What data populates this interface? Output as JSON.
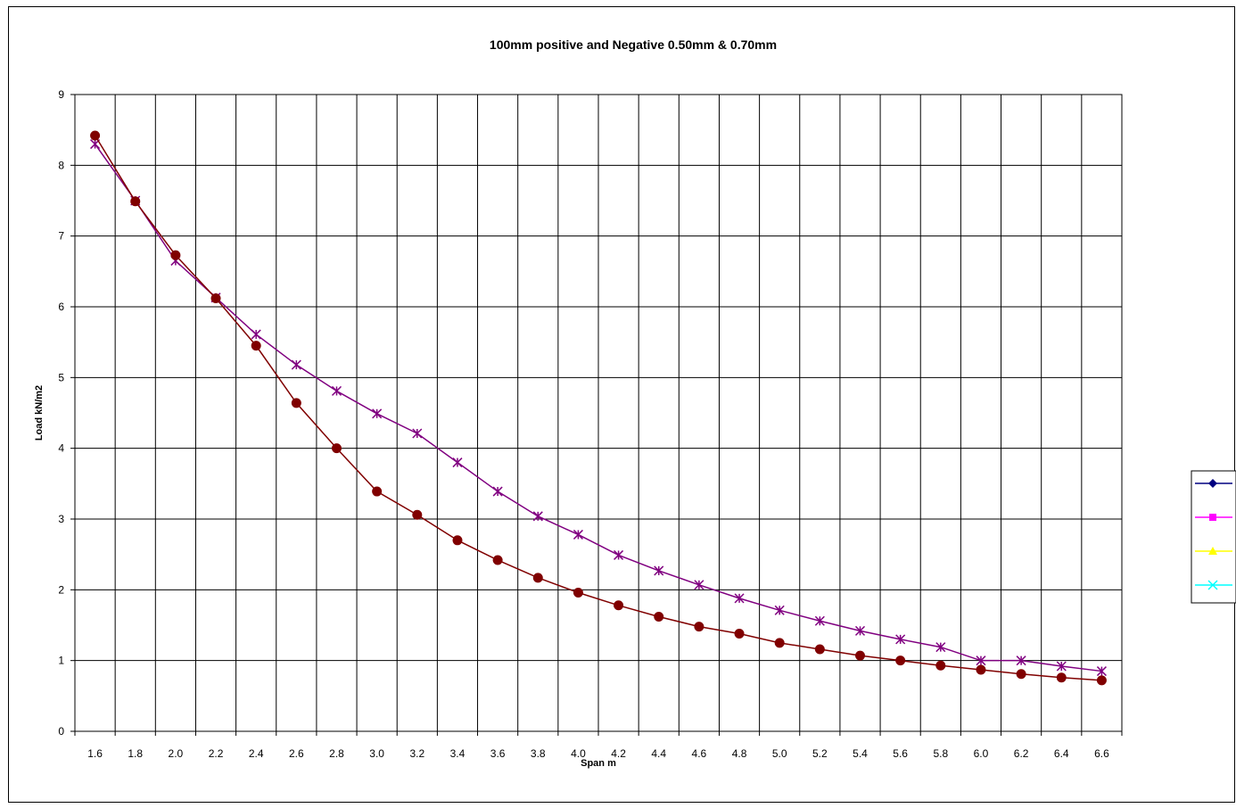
{
  "chart_data": {
    "type": "line",
    "title": "100mm positive and Negative 0.50mm & 0.70mm",
    "xlabel": "Span m",
    "ylabel": "Load kN/m2",
    "categories": [
      "1.6",
      "1.8",
      "2.0",
      "2.2",
      "2.4",
      "2.6",
      "2.8",
      "3.0",
      "3.2",
      "3.4",
      "3.6",
      "3.8",
      "4.0",
      "4.2",
      "4.4",
      "4.6",
      "4.8",
      "5.0",
      "5.2",
      "5.4",
      "5.6",
      "5.8",
      "6.0",
      "6.2",
      "6.4",
      "6.6"
    ],
    "ylim": [
      0,
      9
    ],
    "yticks": [
      "0",
      "1",
      "2",
      "3",
      "4",
      "5",
      "6",
      "7",
      "8",
      "9"
    ],
    "grid": true,
    "legend_position": "right",
    "series": [
      {
        "color": "#000080",
        "marker": "diamond",
        "values": [
          8.42,
          7.49,
          6.73,
          6.12,
          5.45,
          4.64,
          4.0,
          3.39,
          3.06,
          2.7,
          2.42,
          2.17,
          1.96,
          1.78,
          1.62,
          1.48,
          1.38,
          1.25,
          1.16,
          1.07,
          1.0,
          0.93,
          0.87,
          0.81,
          0.76,
          0.72
        ]
      },
      {
        "color": "#FF00FF",
        "marker": "square",
        "values": [
          8.3,
          7.5,
          6.65,
          6.13,
          5.61,
          5.18,
          4.81,
          4.49,
          4.21,
          3.8,
          3.39,
          3.04,
          2.78,
          2.49,
          2.27,
          2.07,
          1.88,
          1.71,
          1.56,
          1.42,
          1.3,
          1.19,
          1.0,
          1.0,
          0.92,
          0.85
        ]
      },
      {
        "color": "#FFFF00",
        "marker": "triangle",
        "values": [
          8.42,
          7.49,
          6.73,
          6.12,
          5.45,
          4.64,
          4.0,
          3.39,
          3.06,
          2.7,
          2.42,
          2.17,
          1.96,
          1.78,
          1.62,
          1.48,
          1.38,
          1.25,
          1.16,
          1.07,
          1.0,
          0.93,
          0.87,
          0.81,
          0.76,
          0.72
        ]
      },
      {
        "color": "#00FFFF",
        "marker": "x",
        "values": [
          8.3,
          7.5,
          6.65,
          6.13,
          5.61,
          5.18,
          4.81,
          4.49,
          4.21,
          3.8,
          3.39,
          3.04,
          2.78,
          2.49,
          2.27,
          2.07,
          1.88,
          1.71,
          1.56,
          1.42,
          1.3,
          1.19,
          1.0,
          1.0,
          0.92,
          0.85
        ]
      }
    ],
    "visible_lines": [
      {
        "color": "#800000",
        "marker": "circle",
        "series_index": 0
      },
      {
        "color": "#800080",
        "marker": "star",
        "series_index": 1
      }
    ]
  }
}
